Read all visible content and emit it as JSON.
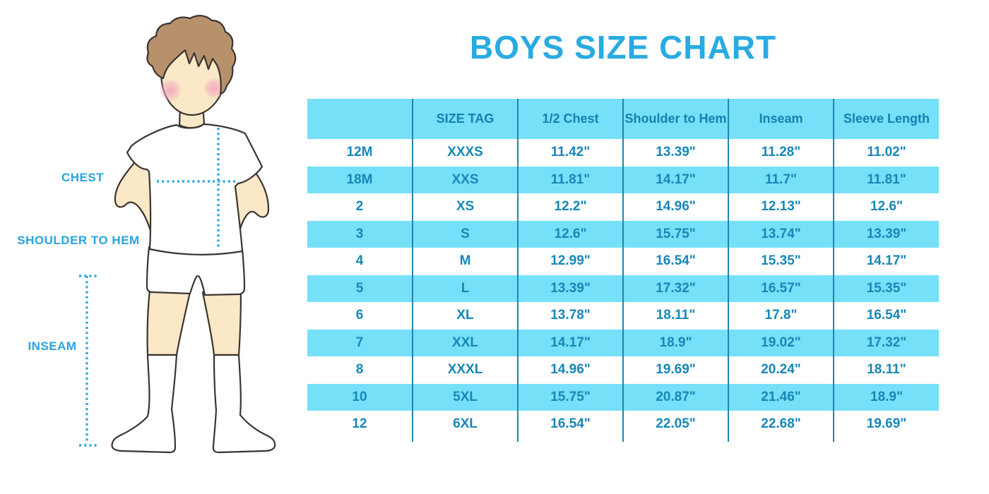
{
  "title": "BOYS SIZE CHART",
  "figure": {
    "labels": {
      "chest": "CHEST",
      "shoulder_to_hem": "SHOULDER TO HEM",
      "inseam": "INSEAM"
    }
  },
  "colors": {
    "accent_blue": "#29ABE2",
    "label_blue": "#29A4DE",
    "table_row_alt": "#76E0F8",
    "table_header_bg": "#76E0F8",
    "table_text": "#1787B8",
    "table_divider": "#1F85B2",
    "dotted_line": "#2BA9E1",
    "skin": "#FBE8C6",
    "hair": "#B7916C",
    "cheek": "#F2A9BF",
    "outline": "#3B352F"
  },
  "chart_data": {
    "type": "table",
    "title": "BOYS SIZE CHART",
    "columns": [
      "",
      "SIZE TAG",
      "1/2 Chest",
      "Shoulder to Hem",
      "Inseam",
      "Sleeve Length"
    ],
    "rows": [
      [
        "12M",
        "XXXS",
        "11.42\"",
        "13.39\"",
        "11.28\"",
        "11.02\""
      ],
      [
        "18M",
        "XXS",
        "11.81\"",
        "14.17\"",
        "11.7\"",
        "11.81\""
      ],
      [
        "2",
        "XS",
        "12.2\"",
        "14.96\"",
        "12.13\"",
        "12.6\""
      ],
      [
        "3",
        "S",
        "12.6\"",
        "15.75\"",
        "13.74\"",
        "13.39\""
      ],
      [
        "4",
        "M",
        "12.99\"",
        "16.54\"",
        "15.35\"",
        "14.17\""
      ],
      [
        "5",
        "L",
        "13.39\"",
        "17.32\"",
        "16.57\"",
        "15.35\""
      ],
      [
        "6",
        "XL",
        "13.78\"",
        "18.11\"",
        "17.8\"",
        "16.54\""
      ],
      [
        "7",
        "XXL",
        "14.17\"",
        "18.9\"",
        "19.02\"",
        "17.32\""
      ],
      [
        "8",
        "XXXL",
        "14.96\"",
        "19.69\"",
        "20.24\"",
        "18.11\""
      ],
      [
        "10",
        "5XL",
        "15.75\"",
        "20.87\"",
        "21.46\"",
        "18.9\""
      ],
      [
        "12",
        "6XL",
        "16.54\"",
        "22.05\"",
        "22.68\"",
        "19.69\""
      ]
    ],
    "units": "inches",
    "layout_hints": "header row cyan; data rows alternate white/cyan starting white; vertical dividers only, no horizontal rules"
  }
}
